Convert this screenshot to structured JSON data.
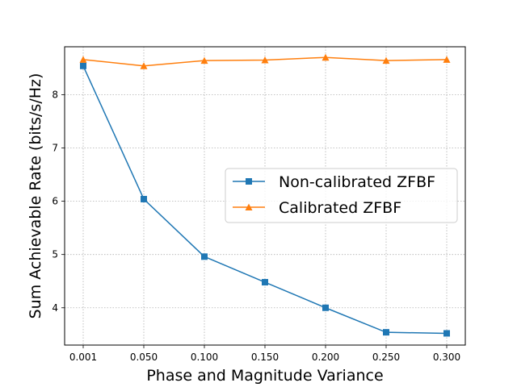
{
  "chart_data": {
    "type": "line",
    "title": "",
    "xlabel": "Phase and Magnitude Variance",
    "ylabel": "Sum Achievable Rate (bits/s/Hz)",
    "categories": [
      "0.001",
      "0.050",
      "0.100",
      "0.150",
      "0.200",
      "0.250",
      "0.300"
    ],
    "ylim": [
      3.3,
      8.9
    ],
    "yticks": [
      4,
      5,
      6,
      7,
      8
    ],
    "grid": true,
    "legend_position": "center-right",
    "series": [
      {
        "name": "Non-calibrated ZFBF",
        "color": "#1f77b4",
        "marker": "square",
        "values": [
          8.54,
          6.04,
          4.96,
          4.48,
          4.0,
          3.54,
          3.52
        ]
      },
      {
        "name": "Calibrated ZFBF",
        "color": "#ff7f0e",
        "marker": "triangle",
        "values": [
          8.66,
          8.54,
          8.64,
          8.65,
          8.7,
          8.64,
          8.66
        ]
      }
    ]
  }
}
